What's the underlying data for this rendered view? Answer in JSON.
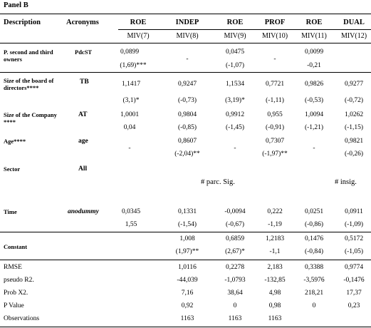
{
  "panel_title": "Panel B",
  "header": {
    "description": "Description",
    "acronyms": "Acronyms",
    "dependent": [
      "ROE",
      "INDEP",
      "ROE",
      "PROF",
      "ROE",
      "DUAL"
    ],
    "models": [
      "MIV(7)",
      "MIV(8)",
      "MIV(9)",
      "MIV(10)",
      "MIV(11)",
      "MIV(12)"
    ]
  },
  "rows": [
    {
      "desc": "P. second and third owners",
      "acr": "PdcST",
      "v1": [
        "0,0899",
        "-",
        "0,0475",
        "-",
        "0,0099",
        ""
      ],
      "v2": [
        "(1,69)***",
        "",
        "(-1,07)",
        "",
        "-0,21",
        ""
      ]
    },
    {
      "desc": "Size of the board of directors****",
      "acr": "TB",
      "v1": [
        "1,1417",
        "0,9247",
        "1,1534",
        "0,7721",
        "0,9826",
        "0,9277"
      ],
      "v2": [
        "(3,1)*",
        "(-0,73)",
        "(3,19)*",
        "(-1,11)",
        "(-0,53)",
        "(-0,72)"
      ]
    },
    {
      "desc": "Size of the Company ****",
      "acr": "AT",
      "v1": [
        "1,0001",
        "0,9804",
        "0,9912",
        "0,955",
        "1,0094",
        "1,0262"
      ],
      "v2": [
        "0,04",
        "(-0,85)",
        "(-1,45)",
        "(-0,91)",
        "(-1,21)",
        "(-1,15)"
      ]
    },
    {
      "desc": "Age****",
      "acr": "age",
      "v1": [
        "",
        "0,8607",
        "",
        "0,7307",
        "",
        "0,9821"
      ],
      "v2": [
        "-",
        "(-2,04)**",
        "-",
        "(-1,97)**",
        "-",
        "(-0,26)"
      ]
    },
    {
      "desc": "Sector",
      "acr": "All",
      "note1": "# parc. Sig.",
      "note2": "# insig."
    },
    {
      "desc": "Time",
      "acr": "anodummy",
      "v1": [
        "0,0345",
        "0,1331",
        "-0,0094",
        "0,222",
        "0,0251",
        "0,0911"
      ],
      "v2": [
        "1,55",
        "(-1,54)",
        "(-0,67)",
        "-1,19",
        "(-0,86)",
        "(-1,09)"
      ]
    },
    {
      "desc": "Constant",
      "v1": [
        "",
        "1,008",
        "0,6859",
        "1,2183",
        "0,1476",
        "0,5172"
      ],
      "v2": [
        "",
        "(1,97)**",
        "(2,67)*",
        "-1,1",
        "(-0,84)",
        "(-1,05)"
      ]
    }
  ],
  "stats": [
    {
      "label": "RMSE",
      "vals": [
        "",
        "1,0116",
        "0,2278",
        "2,183",
        "0,3388",
        "0,9774"
      ]
    },
    {
      "label": "pseudo R2.",
      "vals": [
        "",
        "-44,039",
        "-1,0793",
        "-132,85",
        "-3,5976",
        "-0,1476"
      ]
    },
    {
      "label": "Prob X2.",
      "vals": [
        "",
        "7,16",
        "38,64",
        "4,98",
        "218,21",
        "17,37"
      ]
    },
    {
      "label": "P Value",
      "vals": [
        "",
        "0,92",
        "0",
        "0,98",
        "0",
        "0,23"
      ]
    },
    {
      "label": "Observations",
      "vals": [
        "",
        "1163",
        "1163",
        "1163",
        "",
        ""
      ]
    }
  ]
}
